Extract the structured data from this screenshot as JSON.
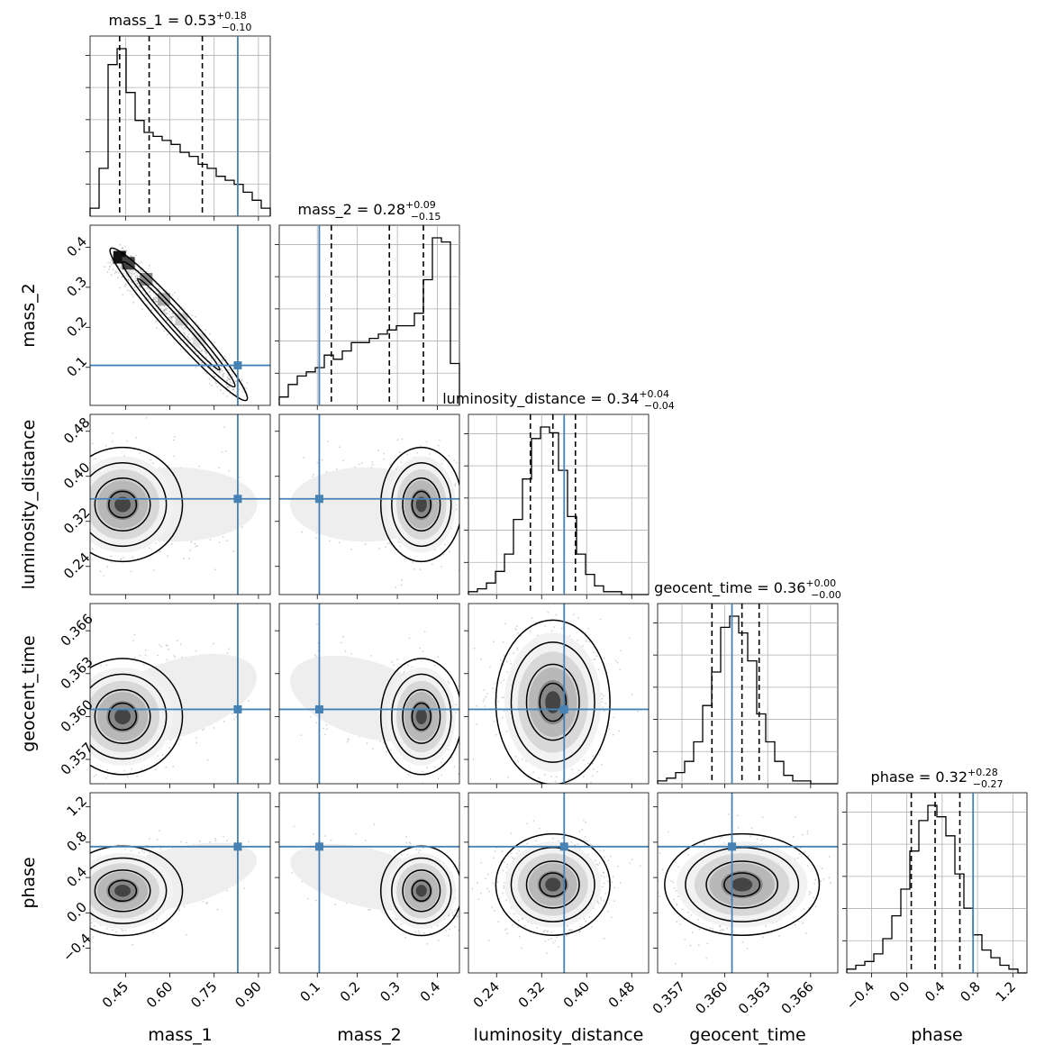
{
  "chart_data": {
    "type": "corner",
    "truth_color": "#4682b4",
    "parameters": [
      {
        "name": "mass_1",
        "title_value": "0.53",
        "err_plus": "+0.18",
        "err_minus": "−0.10",
        "range": [
          0.33,
          0.94
        ],
        "ticks": [
          0.45,
          0.6,
          0.75,
          0.9
        ],
        "tick_labels": [
          "0.45",
          "0.60",
          "0.75",
          "0.90"
        ],
        "truth": 0.83,
        "quantiles": [
          0.43,
          0.53,
          0.71
        ]
      },
      {
        "name": "mass_2",
        "title_value": "0.28",
        "err_plus": "+0.09",
        "err_minus": "−0.15",
        "range": [
          0.005,
          0.455
        ],
        "ticks": [
          0.1,
          0.2,
          0.3,
          0.4
        ],
        "tick_labels": [
          "0.1",
          "0.2",
          "0.3",
          "0.4"
        ],
        "truth": 0.105,
        "quantiles": [
          0.135,
          0.28,
          0.365
        ]
      },
      {
        "name": "luminosity_distance",
        "title_value": "0.34",
        "err_plus": "+0.04",
        "err_minus": "−0.04",
        "range": [
          0.19,
          0.51
        ],
        "ticks": [
          0.24,
          0.32,
          0.4,
          0.48
        ],
        "tick_labels": [
          "0.24",
          "0.32",
          "0.40",
          "0.48"
        ],
        "truth": 0.36,
        "quantiles": [
          0.3,
          0.34,
          0.38
        ]
      },
      {
        "name": "geocent_time",
        "title_value": "0.36",
        "err_plus": "+0.00",
        "err_minus": "−0.00",
        "range": [
          0.3553,
          0.3679
        ],
        "ticks": [
          0.357,
          0.36,
          0.363,
          0.366
        ],
        "tick_labels": [
          "0.357",
          "0.360",
          "0.363",
          "0.366"
        ],
        "truth": 0.3605,
        "quantiles": [
          0.3591,
          0.3612,
          0.3624
        ]
      },
      {
        "name": "phase",
        "title_value": "0.32",
        "err_plus": "+0.28",
        "err_minus": "−0.27",
        "range": [
          -0.68,
          1.36
        ],
        "ticks": [
          -0.4,
          0.0,
          0.4,
          0.8,
          1.2
        ],
        "tick_labels": [
          "−0.4",
          "0.0",
          "0.4",
          "0.8",
          "1.2"
        ],
        "truth": 0.75,
        "quantiles": [
          0.05,
          0.32,
          0.6
        ]
      }
    ],
    "histograms": [
      [
        2,
        12,
        38,
        42,
        31,
        24,
        21,
        20,
        19,
        18,
        16,
        15,
        13,
        12,
        10,
        9,
        8,
        6,
        4,
        2
      ],
      [
        2,
        5,
        7,
        8,
        9,
        12,
        11,
        13,
        15,
        15,
        16,
        17,
        18,
        19,
        19,
        22,
        30,
        40,
        39,
        10
      ],
      [
        1,
        2,
        4,
        8,
        14,
        26,
        40,
        54,
        58,
        56,
        43,
        27,
        14,
        7,
        3,
        1,
        1,
        0,
        0,
        0
      ],
      [
        1,
        2,
        4,
        8,
        15,
        28,
        40,
        56,
        60,
        54,
        44,
        25,
        15,
        8,
        3,
        1,
        1,
        0,
        0,
        0
      ],
      [
        1,
        2,
        3,
        5,
        9,
        15,
        22,
        32,
        40,
        44,
        41,
        36,
        26,
        17,
        10,
        6,
        4,
        2,
        1,
        0
      ]
    ],
    "pair_models": [
      {
        "i": 1,
        "j": 0,
        "shape": "banana"
      },
      {
        "i": 2,
        "j": 0,
        "center": [
          0.44,
          0.35
        ],
        "sx": 0.06,
        "sy": 0.03,
        "rho": 0.0,
        "tail": [
          0.8,
          0.35
        ]
      },
      {
        "i": 3,
        "j": 0,
        "center": [
          0.44,
          0.36
        ],
        "sx": 0.06,
        "sy": 0.0012,
        "rho": 0.35,
        "tail": [
          0.8,
          0.3625
        ]
      },
      {
        "i": 4,
        "j": 0,
        "center": [
          0.44,
          0.25
        ],
        "sx": 0.06,
        "sy": 0.15,
        "rho": 0.4,
        "tail": [
          0.8,
          0.55
        ]
      },
      {
        "i": 2,
        "j": 1,
        "center": [
          0.36,
          0.35
        ],
        "sx": 0.03,
        "sy": 0.03,
        "rho": 0.0,
        "tail": [
          0.08,
          0.35
        ]
      },
      {
        "i": 3,
        "j": 1,
        "center": [
          0.36,
          0.36
        ],
        "sx": 0.03,
        "sy": 0.0012,
        "rho": -0.3,
        "tail": [
          0.08,
          0.3625
        ]
      },
      {
        "i": 4,
        "j": 1,
        "center": [
          0.36,
          0.25
        ],
        "sx": 0.03,
        "sy": 0.15,
        "rho": -0.4,
        "tail": [
          0.08,
          0.55
        ]
      },
      {
        "i": 3,
        "j": 2,
        "center": [
          0.34,
          0.361
        ],
        "sx": 0.03,
        "sy": 0.0017,
        "rho": 0.0
      },
      {
        "i": 4,
        "j": 2,
        "center": [
          0.34,
          0.32
        ],
        "sx": 0.03,
        "sy": 0.17,
        "rho": 0.0
      },
      {
        "i": 4,
        "j": 3,
        "center": [
          0.3612,
          0.32
        ],
        "sx": 0.0016,
        "sy": 0.17,
        "rho": 0.2
      }
    ]
  }
}
